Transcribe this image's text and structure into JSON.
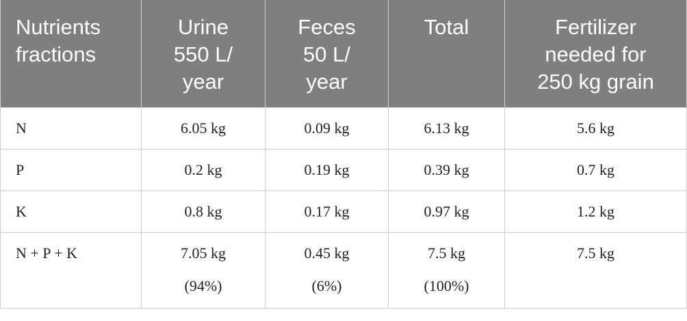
{
  "table": {
    "header": [
      [
        "Nutrients",
        "fractions"
      ],
      [
        "Urine",
        "550 L/",
        "year"
      ],
      [
        "Feces",
        "50 L/",
        "year"
      ],
      [
        "Total"
      ],
      [
        "Fertilizer",
        "needed for",
        "250 kg grain"
      ]
    ],
    "rows": [
      [
        [
          "N"
        ],
        [
          "6.05 kg"
        ],
        [
          "0.09 kg"
        ],
        [
          "6.13 kg"
        ],
        [
          "5.6 kg"
        ]
      ],
      [
        [
          "P"
        ],
        [
          "0.2 kg"
        ],
        [
          "0.19 kg"
        ],
        [
          "0.39 kg"
        ],
        [
          "0.7 kg"
        ]
      ],
      [
        [
          "K"
        ],
        [
          "0.8 kg"
        ],
        [
          "0.17 kg"
        ],
        [
          "0.97 kg"
        ],
        [
          "1.2 kg"
        ]
      ],
      [
        [
          "N + P + K"
        ],
        [
          "7.05 kg",
          "(94%)"
        ],
        [
          "0.45 kg",
          "(6%)"
        ],
        [
          "7.5 kg",
          "(100%)"
        ],
        [
          "7.5 kg"
        ]
      ]
    ]
  }
}
